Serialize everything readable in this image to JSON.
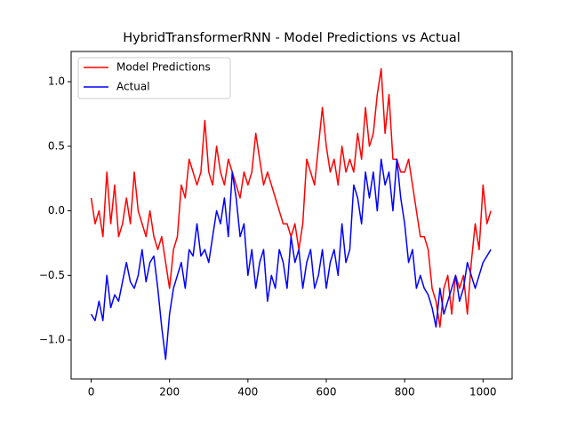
{
  "chart_data": {
    "type": "line",
    "title": "HybridTransformerRNN - Model Predictions vs Actual",
    "x": [
      0,
      10,
      20,
      30,
      40,
      50,
      60,
      70,
      80,
      90,
      100,
      110,
      120,
      130,
      140,
      150,
      160,
      170,
      180,
      190,
      200,
      210,
      220,
      230,
      240,
      250,
      260,
      270,
      280,
      290,
      300,
      310,
      320,
      330,
      340,
      350,
      360,
      370,
      380,
      390,
      400,
      410,
      420,
      430,
      440,
      450,
      460,
      470,
      480,
      490,
      500,
      510,
      520,
      530,
      540,
      550,
      560,
      570,
      580,
      590,
      600,
      610,
      620,
      630,
      640,
      650,
      660,
      670,
      680,
      690,
      700,
      710,
      720,
      730,
      740,
      750,
      760,
      770,
      780,
      790,
      800,
      810,
      820,
      830,
      840,
      850,
      860,
      870,
      880,
      890,
      900,
      910,
      920,
      930,
      940,
      950,
      960,
      970,
      980,
      990,
      1000,
      1010,
      1020
    ],
    "series": [
      {
        "name": "Model Predictions",
        "color": "#ff0000",
        "values": [
          0.1,
          -0.1,
          0.0,
          -0.2,
          0.3,
          -0.1,
          0.2,
          -0.2,
          -0.1,
          0.1,
          -0.1,
          0.3,
          0.0,
          -0.1,
          -0.2,
          0.0,
          -0.2,
          -0.3,
          -0.2,
          -0.4,
          -0.6,
          -0.3,
          -0.2,
          0.2,
          0.1,
          0.4,
          0.3,
          0.2,
          0.3,
          0.7,
          0.3,
          0.2,
          0.5,
          0.3,
          0.2,
          0.4,
          0.3,
          0.2,
          0.1,
          0.3,
          0.2,
          0.3,
          0.6,
          0.4,
          0.2,
          0.3,
          0.2,
          0.1,
          0.0,
          -0.1,
          -0.1,
          -0.2,
          -0.1,
          -0.3,
          -0.1,
          0.4,
          0.3,
          0.2,
          0.5,
          0.8,
          0.5,
          0.3,
          0.4,
          0.2,
          0.5,
          0.3,
          0.4,
          0.3,
          0.6,
          0.4,
          0.8,
          0.5,
          0.6,
          0.9,
          1.1,
          0.6,
          0.9,
          0.4,
          0.4,
          0.3,
          0.3,
          0.4,
          0.2,
          0.0,
          -0.2,
          -0.2,
          -0.3,
          -0.6,
          -0.7,
          -0.9,
          -0.6,
          -0.5,
          -0.8,
          -0.5,
          -0.6,
          -0.5,
          -0.8,
          -0.4,
          -0.1,
          -0.3,
          0.2,
          -0.1,
          0.0
        ]
      },
      {
        "name": "Actual",
        "color": "#0000ff",
        "values": [
          -0.8,
          -0.85,
          -0.7,
          -0.85,
          -0.5,
          -0.75,
          -0.65,
          -0.7,
          -0.55,
          -0.4,
          -0.55,
          -0.6,
          -0.5,
          -0.3,
          -0.55,
          -0.4,
          -0.35,
          -0.6,
          -0.9,
          -1.15,
          -0.8,
          -0.6,
          -0.5,
          -0.4,
          -0.6,
          -0.3,
          -0.35,
          -0.1,
          -0.35,
          -0.3,
          -0.4,
          -0.2,
          0.0,
          -0.1,
          0.1,
          -0.2,
          0.3,
          0.1,
          -0.2,
          -0.1,
          -0.5,
          -0.3,
          -0.6,
          -0.4,
          -0.3,
          -0.7,
          -0.5,
          -0.6,
          -0.3,
          -0.4,
          -0.6,
          -0.2,
          -0.4,
          -0.3,
          -0.6,
          -0.4,
          -0.3,
          -0.6,
          -0.5,
          -0.3,
          -0.6,
          -0.4,
          -0.3,
          -0.5,
          -0.1,
          -0.4,
          -0.3,
          0.2,
          0.1,
          -0.1,
          0.3,
          0.1,
          0.3,
          0.0,
          0.4,
          0.2,
          0.3,
          0.0,
          0.4,
          0.1,
          -0.1,
          -0.4,
          -0.3,
          -0.6,
          -0.5,
          -0.6,
          -0.65,
          -0.75,
          -0.9,
          -0.6,
          -0.8,
          -0.7,
          -0.6,
          -0.5,
          -0.7,
          -0.6,
          -0.4,
          -0.5,
          -0.6,
          -0.5,
          -0.4,
          -0.35,
          -0.3
        ]
      }
    ],
    "xlim": [
      -51.15,
      1074.15
    ],
    "ylim": [
      -1.302,
      1.234
    ],
    "xticks": [
      0,
      200,
      400,
      600,
      800,
      1000
    ],
    "yticks": [
      {
        "value": -1.0,
        "label": "−1.0"
      },
      {
        "value": -0.5,
        "label": "−0.5"
      },
      {
        "value": 0,
        "label": "0.0"
      },
      0.5,
      {
        "value": 1.0,
        "label": "1.0"
      }
    ],
    "grid": false,
    "legend": "upper-left"
  }
}
